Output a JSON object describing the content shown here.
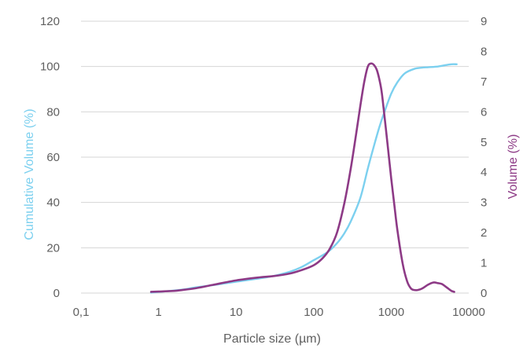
{
  "chart_data": {
    "type": "line",
    "xlabel": "Particle size (µm)",
    "ylabel_left": "Cumulative Volume (%)",
    "ylabel_right": "Volume (%)",
    "x_scale": "log",
    "x_ticks": [
      0.1,
      1,
      10,
      100,
      1000,
      10000
    ],
    "x_tick_labels": [
      "0,1",
      "1",
      "10",
      "100",
      "1000",
      "10000"
    ],
    "ylim_left": [
      0,
      120
    ],
    "y_ticks_left": [
      0,
      20,
      40,
      60,
      80,
      100,
      120
    ],
    "y_tick_labels_left": [
      "0",
      "20",
      "40",
      "60",
      "80",
      "100",
      "120"
    ],
    "ylim_right": [
      0,
      9
    ],
    "y_ticks_right": [
      0,
      1,
      2,
      3,
      4,
      5,
      6,
      7,
      8,
      9
    ],
    "y_tick_labels_right": [
      "0",
      "1",
      "2",
      "3",
      "4",
      "5",
      "6",
      "7",
      "8",
      "9"
    ],
    "grid": "horizontal",
    "colors": {
      "cumulative": "#7cd0ef",
      "volume": "#8d3a86",
      "left_axis_label": "#7cd0ef",
      "right_axis_label": "#8d3a86",
      "x_axis_label": "#5f5f5f"
    },
    "series": [
      {
        "key": "cumulative",
        "axis": "left",
        "color": "#7cd0ef",
        "x": [
          0.8,
          1,
          2,
          3,
          5,
          10,
          20,
          30,
          50,
          70,
          100,
          150,
          200,
          250,
          300,
          400,
          500,
          600,
          700,
          800,
          1000,
          1200,
          1500,
          2000,
          2500,
          3000,
          4000,
          5000,
          6000,
          7000
        ],
        "y": [
          0.2,
          0.5,
          1.5,
          2.5,
          3.5,
          5,
          6.5,
          7.5,
          9.5,
          11.5,
          14.5,
          18,
          22,
          26.5,
          31.5,
          42,
          55,
          65,
          73,
          79,
          88,
          93,
          97,
          99,
          99.5,
          99.7,
          100,
          100.6,
          101,
          101
        ]
      },
      {
        "key": "volume",
        "axis": "right",
        "color": "#8d3a86",
        "x": [
          0.8,
          1,
          1.5,
          2,
          3,
          5,
          10,
          20,
          30,
          50,
          70,
          100,
          130,
          160,
          200,
          250,
          300,
          350,
          400,
          450,
          500,
          550,
          600,
          650,
          700,
          750,
          800,
          900,
          1000,
          1100,
          1200,
          1400,
          1600,
          1800,
          2000,
          2200,
          2500,
          3000,
          3500,
          4000,
          4500,
          5000,
          5500,
          6000,
          6500
        ],
        "y": [
          0.04,
          0.05,
          0.07,
          0.1,
          0.16,
          0.27,
          0.42,
          0.52,
          0.56,
          0.65,
          0.76,
          0.92,
          1.15,
          1.45,
          2,
          3,
          4.1,
          5.2,
          6.2,
          7.0,
          7.5,
          7.6,
          7.55,
          7.4,
          7.1,
          6.7,
          6.1,
          4.9,
          3.8,
          2.9,
          2.1,
          1.0,
          0.4,
          0.15,
          0.1,
          0.1,
          0.15,
          0.28,
          0.35,
          0.33,
          0.3,
          0.22,
          0.14,
          0.07,
          0.04
        ]
      }
    ]
  }
}
